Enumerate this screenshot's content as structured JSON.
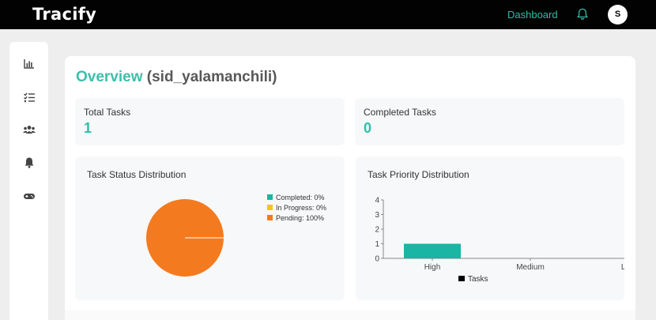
{
  "app": {
    "brand": "Tracify"
  },
  "topnav": {
    "dashboard_label": "Dashboard",
    "user_initial": "S"
  },
  "sidebar": {
    "items": [
      "chart-bar-icon",
      "task-list-icon",
      "users-icon",
      "bell-icon",
      "gamepad-icon"
    ]
  },
  "overview": {
    "title_accent": "Overview",
    "title_user": "(sid_yalamanchili)"
  },
  "stats": {
    "total_tasks": {
      "label": "Total Tasks",
      "value": "1"
    },
    "completed_tasks": {
      "label": "Completed Tasks",
      "value": "0"
    }
  },
  "colors": {
    "accent": "#2dbfa7",
    "pending": "#f47a1f",
    "in_progress": "#f5c518",
    "completed": "#1ab5a3"
  },
  "chart_data": [
    {
      "type": "pie",
      "title": "Task Status Distribution",
      "labels": [
        "Completed: 0%",
        "In Progress: 0%",
        "Pending: 100%"
      ],
      "values": [
        0,
        0,
        100
      ],
      "colors": [
        "#1ab5a3",
        "#f5c518",
        "#f47a1f"
      ],
      "legend": "right"
    },
    {
      "type": "bar",
      "title": "Task Priority Distribution",
      "categories": [
        "High",
        "Medium",
        "Low"
      ],
      "series": [
        {
          "name": "Tasks",
          "values": [
            1,
            0,
            0
          ]
        }
      ],
      "ylim": [
        0,
        4
      ],
      "yticks": [
        "0",
        "1",
        "2",
        "3",
        "4"
      ],
      "legend": "bottom"
    }
  ]
}
